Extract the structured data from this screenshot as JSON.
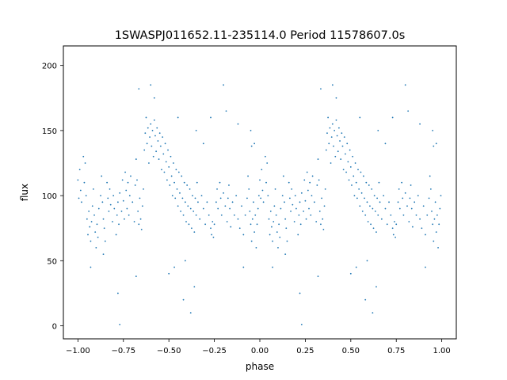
{
  "chart_data": {
    "type": "scatter",
    "title": "1SWASPJ011652.11-235114.0 Period 11578607.0s",
    "xlabel": "phase",
    "ylabel": "flux",
    "xlim": [
      -1.08,
      1.08
    ],
    "ylim": [
      -10,
      215
    ],
    "xticks": [
      -1.0,
      -0.75,
      -0.5,
      -0.25,
      0.0,
      0.25,
      0.5,
      0.75,
      1.0
    ],
    "xtick_labels": [
      "−1.00",
      "−0.75",
      "−0.50",
      "−0.25",
      "0.00",
      "0.25",
      "0.50",
      "0.75",
      "1.00"
    ],
    "yticks": [
      0,
      50,
      100,
      150,
      200
    ],
    "ytick_labels": [
      "0",
      "50",
      "100",
      "150",
      "200"
    ],
    "grid": false,
    "legend": "none",
    "point_color": "#1f77b4",
    "series": [
      {
        "symmetry": "phase curve shown twice: x in [-1,0] and x+1 in [0,1] share the same flux values",
        "points": [
          [
            -1.0,
            112
          ],
          [
            -0.995,
            98
          ],
          [
            -0.99,
            120
          ],
          [
            -0.985,
            104
          ],
          [
            -0.98,
            95
          ],
          [
            -0.97,
            130
          ],
          [
            -0.965,
            110
          ],
          [
            -0.96,
            125
          ],
          [
            -0.955,
            100
          ],
          [
            -0.95,
            82
          ],
          [
            -0.945,
            70
          ],
          [
            -0.94,
            88
          ],
          [
            -0.935,
            76
          ],
          [
            -0.93,
            65
          ],
          [
            -0.925,
            80
          ],
          [
            -0.92,
            92
          ],
          [
            -0.915,
            105
          ],
          [
            -0.91,
            85
          ],
          [
            -0.905,
            72
          ],
          [
            -0.9,
            60
          ],
          [
            -0.895,
            78
          ],
          [
            -0.89,
            68
          ],
          [
            -0.885,
            90
          ],
          [
            -0.875,
            100
          ],
          [
            -0.87,
            115
          ],
          [
            -0.865,
            95
          ],
          [
            -0.86,
            82
          ],
          [
            -0.855,
            75
          ],
          [
            -0.85,
            65
          ],
          [
            -0.84,
            110
          ],
          [
            -0.835,
            98
          ],
          [
            -0.83,
            88
          ],
          [
            -0.825,
            105
          ],
          [
            -0.82,
            93
          ],
          [
            -0.81,
            80
          ],
          [
            -0.805,
            100
          ],
          [
            -0.8,
            90
          ],
          [
            -0.79,
            70
          ],
          [
            -0.785,
            85
          ],
          [
            -0.78,
            95
          ],
          [
            -0.775,
            78
          ],
          [
            -0.77,
            102
          ],
          [
            -0.76,
            88
          ],
          [
            -0.755,
            112
          ],
          [
            -0.75,
            96
          ],
          [
            -0.745,
            82
          ],
          [
            -0.74,
            118
          ],
          [
            -0.735,
            104
          ],
          [
            -0.73,
            90
          ],
          [
            -0.725,
            110
          ],
          [
            -0.72,
            85
          ],
          [
            -0.715,
            100
          ],
          [
            -0.71,
            115
          ],
          [
            -0.7,
            95
          ],
          [
            -0.69,
            80
          ],
          [
            -0.685,
            108
          ],
          [
            -0.68,
            128
          ],
          [
            -0.675,
            112
          ],
          [
            -0.67,
            88
          ],
          [
            -0.665,
            78
          ],
          [
            -0.66,
            98
          ],
          [
            -0.655,
            82
          ],
          [
            -0.65,
            74
          ],
          [
            -0.645,
            92
          ],
          [
            -0.64,
            105
          ],
          [
            -0.635,
            135
          ],
          [
            -0.63,
            148
          ],
          [
            -0.625,
            160
          ],
          [
            -0.62,
            140
          ],
          [
            -0.615,
            152
          ],
          [
            -0.61,
            125
          ],
          [
            -0.605,
            145
          ],
          [
            -0.6,
            155
          ],
          [
            -0.595,
            138
          ],
          [
            -0.59,
            150
          ],
          [
            -0.585,
            130
          ],
          [
            -0.58,
            158
          ],
          [
            -0.575,
            146
          ],
          [
            -0.57,
            134
          ],
          [
            -0.565,
            152
          ],
          [
            -0.56,
            142
          ],
          [
            -0.555,
            128
          ],
          [
            -0.55,
            148
          ],
          [
            -0.545,
            138
          ],
          [
            -0.54,
            120
          ],
          [
            -0.535,
            145
          ],
          [
            -0.53,
            132
          ],
          [
            -0.525,
            118
          ],
          [
            -0.52,
            140
          ],
          [
            -0.515,
            126
          ],
          [
            -0.51,
            112
          ],
          [
            -0.505,
            135
          ],
          [
            -0.5,
            122
          ],
          [
            -0.495,
            108
          ],
          [
            -0.49,
            130
          ],
          [
            -0.485,
            115
          ],
          [
            -0.48,
            100
          ],
          [
            -0.475,
            125
          ],
          [
            -0.47,
            110
          ],
          [
            -0.465,
            98
          ],
          [
            -0.46,
            120
          ],
          [
            -0.455,
            105
          ],
          [
            -0.45,
            92
          ],
          [
            -0.445,
            118
          ],
          [
            -0.44,
            102
          ],
          [
            -0.435,
            88
          ],
          [
            -0.43,
            115
          ],
          [
            -0.425,
            98
          ],
          [
            -0.42,
            85
          ],
          [
            -0.415,
            110
          ],
          [
            -0.41,
            95
          ],
          [
            -0.405,
            80
          ],
          [
            -0.4,
            108
          ],
          [
            -0.395,
            92
          ],
          [
            -0.39,
            78
          ],
          [
            -0.385,
            105
          ],
          [
            -0.38,
            90
          ],
          [
            -0.375,
            75
          ],
          [
            -0.37,
            100
          ],
          [
            -0.365,
            88
          ],
          [
            -0.36,
            72
          ],
          [
            -0.355,
            98
          ],
          [
            -0.35,
            85
          ],
          [
            -0.345,
            110
          ],
          [
            -0.34,
            95
          ],
          [
            -0.33,
            82
          ],
          [
            -0.32,
            100
          ],
          [
            -0.31,
            90
          ],
          [
            -0.3,
            78
          ],
          [
            -0.29,
            95
          ],
          [
            -0.28,
            85
          ],
          [
            -0.27,
            75
          ],
          [
            -0.265,
            70
          ],
          [
            -0.26,
            80
          ],
          [
            -0.255,
            68
          ],
          [
            -0.25,
            78
          ],
          [
            -0.24,
            95
          ],
          [
            -0.235,
            105
          ],
          [
            -0.23,
            90
          ],
          [
            -0.22,
            110
          ],
          [
            -0.215,
            98
          ],
          [
            -0.21,
            85
          ],
          [
            -0.2,
            102
          ],
          [
            -0.19,
            92
          ],
          [
            -0.18,
            80
          ],
          [
            -0.175,
            98
          ],
          [
            -0.17,
            108
          ],
          [
            -0.165,
            90
          ],
          [
            -0.16,
            76
          ],
          [
            -0.15,
            95
          ],
          [
            -0.14,
            85
          ],
          [
            -0.13,
            100
          ],
          [
            -0.12,
            82
          ],
          [
            -0.11,
            75
          ],
          [
            -0.1,
            92
          ],
          [
            -0.09,
            70
          ],
          [
            -0.08,
            85
          ],
          [
            -0.07,
            98
          ],
          [
            -0.065,
            115
          ],
          [
            -0.06,
            105
          ],
          [
            -0.055,
            88
          ],
          [
            -0.05,
            78
          ],
          [
            -0.045,
            65
          ],
          [
            -0.04,
            82
          ],
          [
            -0.035,
            95
          ],
          [
            -0.03,
            72
          ],
          [
            -0.025,
            85
          ],
          [
            -0.02,
            60
          ],
          [
            -0.015,
            78
          ],
          [
            -0.01,
            90
          ],
          [
            -0.005,
            100
          ],
          [
            -0.5,
            40
          ],
          [
            -0.42,
            20
          ],
          [
            -0.38,
            10
          ],
          [
            -0.36,
            30
          ],
          [
            -0.31,
            140
          ],
          [
            -0.2,
            185
          ],
          [
            -0.185,
            165
          ],
          [
            -0.12,
            155
          ],
          [
            -0.09,
            45
          ],
          [
            -0.05,
            150
          ],
          [
            -0.045,
            138
          ],
          [
            -0.6,
            185
          ],
          [
            -0.58,
            175
          ],
          [
            -0.45,
            160
          ],
          [
            -0.35,
            150
          ],
          [
            -0.78,
            25
          ],
          [
            -0.77,
            1
          ],
          [
            -0.93,
            45
          ],
          [
            -0.86,
            55
          ],
          [
            -0.68,
            38
          ],
          [
            -0.665,
            182
          ],
          [
            -0.47,
            45
          ],
          [
            -0.41,
            50
          ],
          [
            -0.27,
            160
          ],
          [
            -0.03,
            140
          ]
        ]
      }
    ]
  }
}
